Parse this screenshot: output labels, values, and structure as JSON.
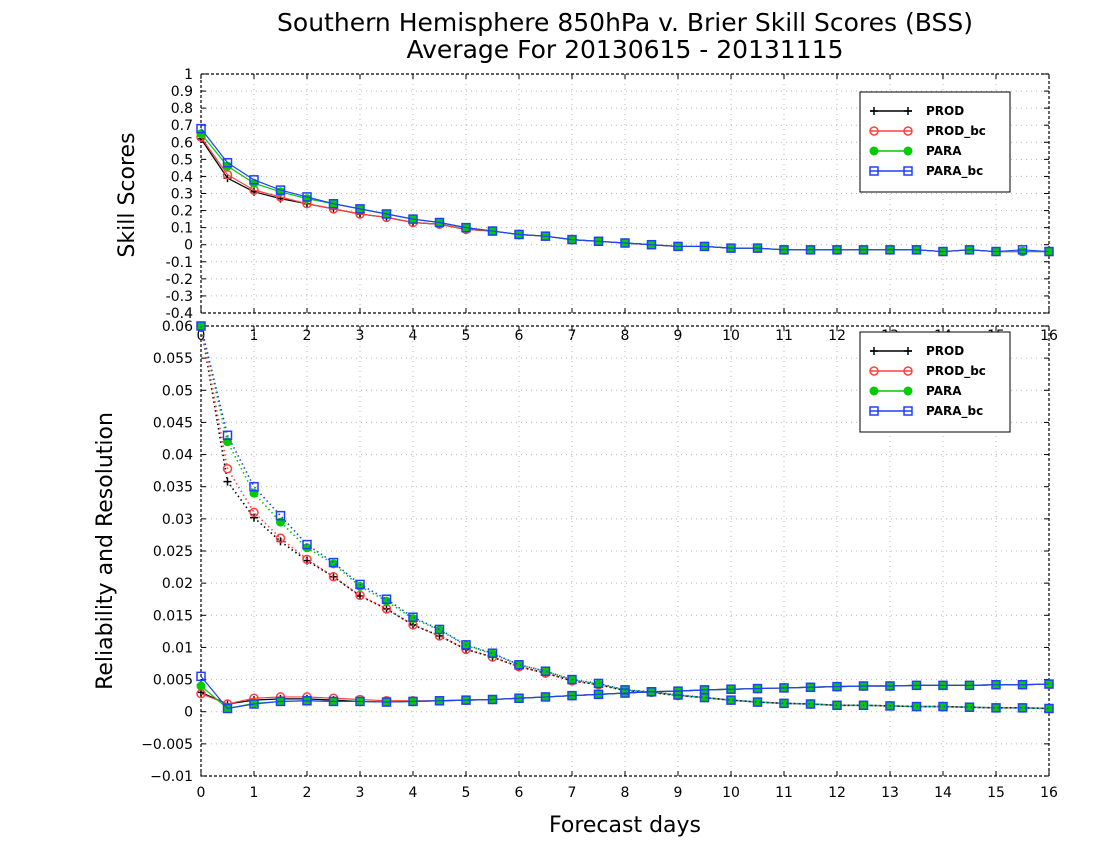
{
  "title": "Southern Hemisphere 850hPa v. Brier Skill Scores (BSS)",
  "subtitle": "Average For 20130615 - 20131115",
  "chart_data": [
    {
      "type": "line",
      "ylabel": "Skill Scores",
      "xlabel": "",
      "xlim": [
        0,
        16
      ],
      "ylim": [
        -0.4,
        1
      ],
      "xticks": [
        "0",
        "1",
        "2",
        "3",
        "4",
        "5",
        "6",
        "7",
        "8",
        "9",
        "10",
        "11",
        "12",
        "13",
        "14",
        "15",
        "16"
      ],
      "yticks": [
        "-0.4",
        "-0.3",
        "-0.2",
        "-0.1",
        "0",
        "0.1",
        "0.2",
        "0.3",
        "0.4",
        "0.5",
        "0.6",
        "0.7",
        "0.8",
        "0.9",
        "1"
      ],
      "grid": true,
      "legend_position": "top-right",
      "x": [
        0,
        0.5,
        1,
        1.5,
        2,
        2.5,
        3,
        3.5,
        4,
        4.5,
        5,
        5.5,
        6,
        6.5,
        7,
        7.5,
        8,
        8.5,
        9,
        9.5,
        10,
        10.5,
        11,
        11.5,
        12,
        12.5,
        13,
        13.5,
        14,
        14.5,
        15,
        15.5,
        16
      ],
      "series": [
        {
          "name": "PROD",
          "color": "#000000",
          "marker": "plus",
          "values": [
            0.62,
            0.39,
            0.31,
            0.27,
            0.24,
            0.21,
            0.18,
            0.16,
            0.13,
            0.12,
            0.09,
            0.08,
            0.06,
            0.05,
            0.03,
            0.02,
            0.01,
            0.0,
            -0.01,
            -0.01,
            -0.02,
            -0.02,
            -0.03,
            -0.03,
            -0.03,
            -0.03,
            -0.03,
            -0.03,
            -0.04,
            -0.03,
            -0.04,
            -0.04,
            -0.04
          ]
        },
        {
          "name": "PROD_bc",
          "color": "#ff4040",
          "marker": "circle",
          "values": [
            0.63,
            0.41,
            0.32,
            0.28,
            0.24,
            0.21,
            0.18,
            0.16,
            0.13,
            0.12,
            0.09,
            0.08,
            0.06,
            0.05,
            0.03,
            0.02,
            0.01,
            0.0,
            -0.01,
            -0.01,
            -0.02,
            -0.02,
            -0.03,
            -0.03,
            -0.03,
            -0.03,
            -0.03,
            -0.03,
            -0.04,
            -0.03,
            -0.04,
            -0.04,
            -0.04
          ]
        },
        {
          "name": "PARA",
          "color": "#00cc00",
          "marker": "dot",
          "values": [
            0.65,
            0.46,
            0.36,
            0.31,
            0.27,
            0.24,
            0.21,
            0.18,
            0.15,
            0.13,
            0.1,
            0.08,
            0.06,
            0.05,
            0.03,
            0.02,
            0.01,
            0.0,
            -0.01,
            -0.01,
            -0.02,
            -0.02,
            -0.03,
            -0.03,
            -0.03,
            -0.03,
            -0.03,
            -0.03,
            -0.04,
            -0.03,
            -0.04,
            -0.04,
            -0.04
          ]
        },
        {
          "name": "PARA_bc",
          "color": "#2040ff",
          "marker": "square",
          "values": [
            0.68,
            0.48,
            0.38,
            0.32,
            0.28,
            0.24,
            0.21,
            0.18,
            0.15,
            0.13,
            0.1,
            0.08,
            0.06,
            0.05,
            0.03,
            0.02,
            0.01,
            0.0,
            -0.01,
            -0.01,
            -0.02,
            -0.02,
            -0.03,
            -0.03,
            -0.03,
            -0.03,
            -0.03,
            -0.03,
            -0.04,
            -0.03,
            -0.04,
            -0.03,
            -0.04
          ]
        }
      ]
    },
    {
      "type": "line",
      "ylabel": "Reliability and Resolution",
      "xlabel": "Forecast days",
      "xlim": [
        0,
        16
      ],
      "ylim": [
        -0.01,
        0.06
      ],
      "xticks": [
        "0",
        "1",
        "2",
        "3",
        "4",
        "5",
        "6",
        "7",
        "8",
        "9",
        "10",
        "11",
        "12",
        "13",
        "14",
        "15",
        "16"
      ],
      "yticks": [
        "−0.01",
        "−0.005",
        "0",
        "0.005",
        "0.01",
        "0.015",
        "0.02",
        "0.025",
        "0.03",
        "0.035",
        "0.04",
        "0.045",
        "0.05",
        "0.055",
        "0.06"
      ],
      "grid": true,
      "legend_position": "top-right",
      "x": [
        0,
        0.5,
        1,
        1.5,
        2,
        2.5,
        3,
        3.5,
        4,
        4.5,
        5,
        5.5,
        6,
        6.5,
        7,
        7.5,
        8,
        8.5,
        9,
        9.5,
        10,
        10.5,
        11,
        11.5,
        12,
        12.5,
        13,
        13.5,
        14,
        14.5,
        15,
        15.5,
        16
      ],
      "series": [
        {
          "name": "PROD",
          "color": "#000000",
          "marker": "plus",
          "resolution": [
            0.06,
            0.0358,
            0.0302,
            0.0265,
            0.0235,
            0.021,
            0.018,
            0.016,
            0.0135,
            0.0118,
            0.0097,
            0.0085,
            0.007,
            0.006,
            0.0048,
            0.0042,
            0.0033,
            0.003,
            0.0025,
            0.0022,
            0.0018,
            0.0015,
            0.0013,
            0.0012,
            0.001,
            0.001,
            0.0009,
            0.0008,
            0.0008,
            0.0007,
            0.0006,
            0.0006,
            0.0005
          ],
          "reliability": [
            0.003,
            0.0012,
            0.0018,
            0.002,
            0.002,
            0.0018,
            0.0016,
            0.0015,
            0.0016,
            0.0017,
            0.0018,
            0.0019,
            0.0021,
            0.0023,
            0.0025,
            0.0027,
            0.0029,
            0.0031,
            0.0032,
            0.0034,
            0.0035,
            0.0036,
            0.0037,
            0.0038,
            0.0039,
            0.004,
            0.004,
            0.0041,
            0.0041,
            0.0041,
            0.0042,
            0.0042,
            0.0043
          ]
        },
        {
          "name": "PROD_bc",
          "color": "#ff4040",
          "marker": "circle",
          "resolution": [
            0.06,
            0.0378,
            0.031,
            0.027,
            0.0237,
            0.021,
            0.0181,
            0.016,
            0.0135,
            0.0118,
            0.0097,
            0.0085,
            0.007,
            0.006,
            0.0048,
            0.0042,
            0.0033,
            0.003,
            0.0025,
            0.0022,
            0.0018,
            0.0015,
            0.0013,
            0.0012,
            0.001,
            0.001,
            0.0009,
            0.0008,
            0.0008,
            0.0007,
            0.0006,
            0.0006,
            0.0005
          ],
          "reliability": [
            0.0028,
            0.0012,
            0.0021,
            0.0023,
            0.0023,
            0.0021,
            0.0019,
            0.0017,
            0.0017,
            0.0017,
            0.0018,
            0.0019,
            0.0021,
            0.0023,
            0.0025,
            0.0027,
            0.0029,
            0.0031,
            0.0032,
            0.0034,
            0.0035,
            0.0036,
            0.0037,
            0.0038,
            0.0039,
            0.004,
            0.004,
            0.0041,
            0.0041,
            0.0041,
            0.0042,
            0.0042,
            0.0043
          ]
        },
        {
          "name": "PARA",
          "color": "#00cc00",
          "marker": "dot",
          "resolution": [
            0.06,
            0.042,
            0.034,
            0.0295,
            0.0255,
            0.023,
            0.0195,
            0.0172,
            0.0145,
            0.0127,
            0.0103,
            0.009,
            0.0073,
            0.0063,
            0.005,
            0.0043,
            0.0034,
            0.003,
            0.0026,
            0.0022,
            0.0018,
            0.0015,
            0.0013,
            0.0012,
            0.001,
            0.001,
            0.0009,
            0.0008,
            0.0008,
            0.0007,
            0.0006,
            0.0006,
            0.0005
          ],
          "reliability": [
            0.004,
            0.0005,
            0.0013,
            0.0016,
            0.0017,
            0.0016,
            0.0016,
            0.0015,
            0.0016,
            0.0017,
            0.0018,
            0.0019,
            0.0021,
            0.0023,
            0.0025,
            0.0027,
            0.0029,
            0.0031,
            0.0032,
            0.0034,
            0.0035,
            0.0036,
            0.0037,
            0.0038,
            0.0039,
            0.004,
            0.004,
            0.0041,
            0.0041,
            0.0041,
            0.0042,
            0.0042,
            0.0043
          ]
        },
        {
          "name": "PARA_bc",
          "color": "#2040ff",
          "marker": "square",
          "resolution": [
            0.06,
            0.043,
            0.035,
            0.0305,
            0.026,
            0.0232,
            0.0198,
            0.0175,
            0.0147,
            0.0128,
            0.0104,
            0.0091,
            0.0073,
            0.0063,
            0.005,
            0.0044,
            0.0034,
            0.0031,
            0.0026,
            0.0022,
            0.0018,
            0.0015,
            0.0013,
            0.0012,
            0.001,
            0.001,
            0.0009,
            0.0008,
            0.0008,
            0.0007,
            0.0006,
            0.0006,
            0.0005
          ],
          "reliability": [
            0.0055,
            0.0005,
            0.0012,
            0.0016,
            0.0017,
            0.0016,
            0.0016,
            0.0015,
            0.0016,
            0.0017,
            0.0018,
            0.0019,
            0.0021,
            0.0023,
            0.0025,
            0.0027,
            0.0029,
            0.0031,
            0.0032,
            0.0034,
            0.0035,
            0.0036,
            0.0037,
            0.0038,
            0.0039,
            0.004,
            0.004,
            0.0041,
            0.0041,
            0.0041,
            0.0042,
            0.0042,
            0.0043
          ]
        }
      ]
    }
  ]
}
